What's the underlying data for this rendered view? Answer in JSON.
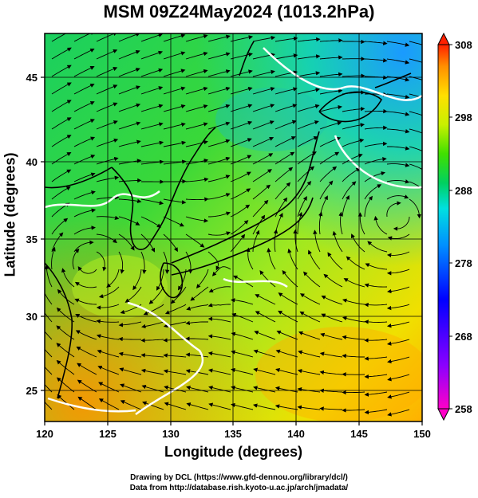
{
  "title": "MSM 09Z24May2024 (1013.2hPa)",
  "xlabel": "Longitude (degrees)",
  "ylabel": "Latitude  (degrees)",
  "footer": {
    "line1": "Drawing by DCL (https://www.gfd-dennou.org/library/dcl/)",
    "line2": "Data from http://database.rish.kyoto-u.ac.jp/arch/jmadata/"
  },
  "x_ticks": [
    "120",
    "125",
    "130",
    "135",
    "140",
    "145",
    "150"
  ],
  "y_ticks": [
    "25",
    "30",
    "35",
    "40",
    "45"
  ],
  "colorbar": {
    "ticks": [
      "258",
      "268",
      "278",
      "288",
      "298",
      "308"
    ],
    "colors": [
      "#ff00c8",
      "#8a00ff",
      "#0000ff",
      "#0090ff",
      "#00e0e0",
      "#00d060",
      "#40e000",
      "#c8f000",
      "#ffe000",
      "#ff9000",
      "#ff2000"
    ]
  },
  "map_style": {
    "streamline_color": "#000000",
    "coast_color": "#000000",
    "contour_color": "#ffffff",
    "grid_color": "#000000"
  }
}
